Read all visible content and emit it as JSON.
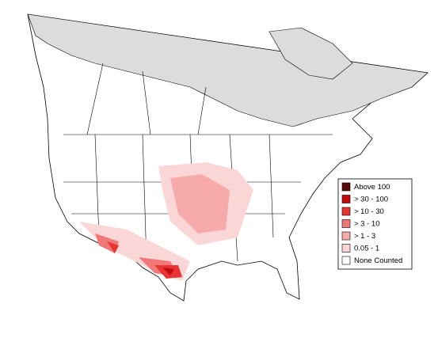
{
  "legend": {
    "items": [
      {
        "label": "Above 100",
        "color": "#5c0a0a"
      },
      {
        "label": "> 30 - 100",
        "color": "#c40c0c"
      },
      {
        "label": "> 10 - 30",
        "color": "#e83434"
      },
      {
        "label": "> 3 - 10",
        "color": "#f07878"
      },
      {
        "label": "> 1 - 3",
        "color": "#f7aaaa"
      },
      {
        "label": "0.05 - 1",
        "color": "#fbd6d6"
      },
      {
        "label": "None Counted",
        "color": "#ffffff"
      }
    ]
  }
}
